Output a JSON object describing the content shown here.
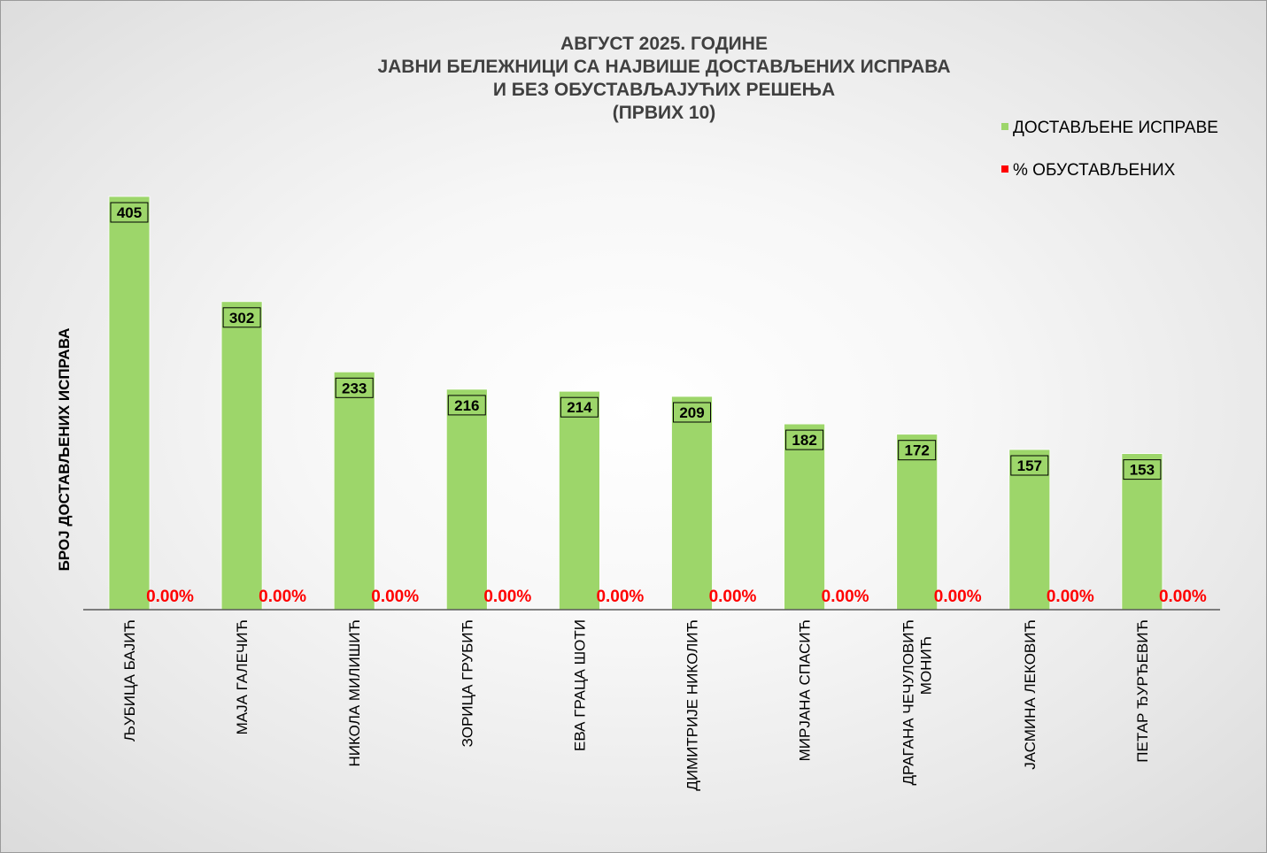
{
  "chart_data": {
    "type": "bar",
    "title_lines": [
      "АВГУСТ 2025. ГОДИНЕ",
      "ЈАВНИ БЕЛЕЖНИЦИ СА НАЈВИШЕ ДОСТАВЉЕНИХ ИСПРАВА",
      "И БЕЗ ОБУСТАВЉАЈУЋИХ РЕШЕЊА",
      "(ПРВИХ 10)"
    ],
    "ylabel": "БРОЈ ДОСТАВЉЕНИХ ИСПРАВА",
    "xlabel": "",
    "legend_position": "top-right",
    "grid": false,
    "categories": [
      [
        "ЉУБИЦА БАЈИЋ"
      ],
      [
        "МАЈА ГАЛЕЧИЋ"
      ],
      [
        "НИКОЛА МИЛИШИЋ"
      ],
      [
        "ЗОРИЦА ГРУБИЋ"
      ],
      [
        "ЕВА ГРАЦА ШОТИ"
      ],
      [
        "ДИМИТРИЈЕ НИКОЛИЋ"
      ],
      [
        "МИРЈАНА СПАСИЋ"
      ],
      [
        "ДРАГАНА ЧЕЧУЛОВИЋ",
        "МОНИЋ"
      ],
      [
        "ЈАСМИНА ЛЕКОВИЋ"
      ],
      [
        "ПЕТАР ЂУРЂЕВИЋ"
      ]
    ],
    "series": [
      {
        "name": "ДОСТАВЉЕНЕ ИСПРАВЕ",
        "color": "#9dd66a",
        "values": [
          405,
          302,
          233,
          216,
          214,
          209,
          182,
          172,
          157,
          153
        ],
        "labels": [
          "405",
          "302",
          "233",
          "216",
          "214",
          "209",
          "182",
          "172",
          "157",
          "153"
        ]
      },
      {
        "name": "% ОБУСТАВЉЕНИХ",
        "color": "#ff0000",
        "values": [
          0,
          0,
          0,
          0,
          0,
          0,
          0,
          0,
          0,
          0
        ],
        "labels": [
          "0.00%",
          "0.00%",
          "0.00%",
          "0.00%",
          "0.00%",
          "0.00%",
          "0.00%",
          "0.00%",
          "0.00%",
          "0.00%"
        ]
      }
    ],
    "colors": {
      "title": "#404040",
      "axis": "#595959",
      "percent_label": "#ff0000",
      "bar_label_fill": "#9dd66a"
    }
  }
}
